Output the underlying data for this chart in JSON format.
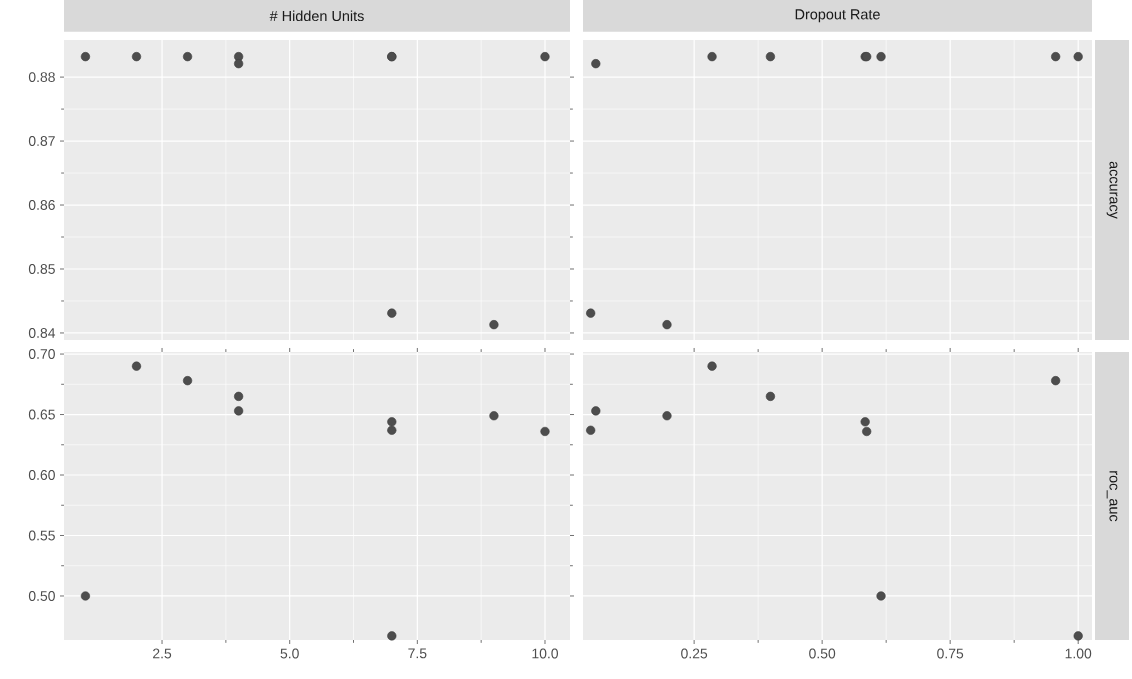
{
  "chart_data": [
    {
      "type": "scatter",
      "title": "# Hidden Units",
      "x": [
        1,
        2,
        3,
        4,
        4,
        7,
        7,
        7,
        9,
        10
      ],
      "values": [
        0.8832,
        0.8832,
        0.8832,
        0.8832,
        0.8821,
        0.8832,
        0.8832,
        0.8431,
        0.8413,
        0.8832
      ],
      "color": "#4d4d4d",
      "marker": "circle",
      "grid": true,
      "tick_labels": "y",
      "xlim": [
        0.58,
        10.49
      ],
      "ylim": [
        0.8389,
        0.8858
      ],
      "xticks": [
        2.5,
        5,
        7.5,
        10
      ],
      "yticks": [
        0.84,
        0.85,
        0.86,
        0.87,
        0.88
      ]
    },
    {
      "type": "scatter",
      "title": "Dropout Rate",
      "ylabel": "accuracy",
      "x": [
        0.615,
        0.285,
        0.956,
        0.399,
        0.058,
        0.584,
        1.0,
        0.048,
        0.197,
        0.587
      ],
      "values": [
        0.8832,
        0.8832,
        0.8832,
        0.8832,
        0.8821,
        0.8832,
        0.8832,
        0.8431,
        0.8413,
        0.8832
      ],
      "color": "#4d4d4d",
      "marker": "circle",
      "grid": true,
      "tick_labels": false,
      "xlim": [
        0.033,
        1.027
      ],
      "ylim": [
        0.8389,
        0.8858
      ],
      "xticks": [
        0.25,
        0.5,
        0.75,
        1
      ],
      "yticks": [
        0.84,
        0.85,
        0.86,
        0.87,
        0.88
      ]
    },
    {
      "type": "scatter",
      "x": [
        1,
        2,
        3,
        4,
        4,
        7,
        7,
        7,
        9,
        10
      ],
      "values": [
        0.5,
        0.69,
        0.678,
        0.665,
        0.653,
        0.644,
        0.467,
        0.637,
        0.649,
        0.636
      ],
      "color": "#4d4d4d",
      "marker": "circle",
      "grid": true,
      "xlim": [
        0.58,
        10.49
      ],
      "ylim": [
        0.4636,
        0.7017
      ],
      "xticks": [
        {
          "value": 2.5,
          "label": "2.5"
        },
        {
          "value": 5,
          "label": "5.0"
        },
        {
          "value": 7.5,
          "label": "7.5"
        },
        {
          "value": 10,
          "label": "10.0"
        }
      ],
      "yticks": [
        {
          "value": 0.5,
          "label": "0.50"
        },
        0.55,
        {
          "value": 0.6,
          "label": "0.60"
        },
        0.65,
        {
          "value": 0.7,
          "label": "0.70"
        }
      ]
    },
    {
      "type": "scatter",
      "ylabel": "roc_auc",
      "x": [
        0.615,
        0.285,
        0.956,
        0.399,
        0.058,
        0.584,
        1.0,
        0.048,
        0.197,
        0.587
      ],
      "values": [
        0.5,
        0.69,
        0.678,
        0.665,
        0.653,
        0.644,
        0.467,
        0.637,
        0.649,
        0.636
      ],
      "color": "#4d4d4d",
      "marker": "circle",
      "grid": true,
      "tick_labels": "x",
      "xlim": [
        0.033,
        1.027
      ],
      "ylim": [
        0.4636,
        0.7017
      ],
      "xticks": [
        0.25,
        {
          "value": 0.5,
          "label": "0.50"
        },
        0.75,
        {
          "value": 1,
          "label": "1.00"
        }
      ],
      "yticks": [
        0.5,
        0.55,
        0.6,
        0.65,
        0.7
      ]
    }
  ]
}
